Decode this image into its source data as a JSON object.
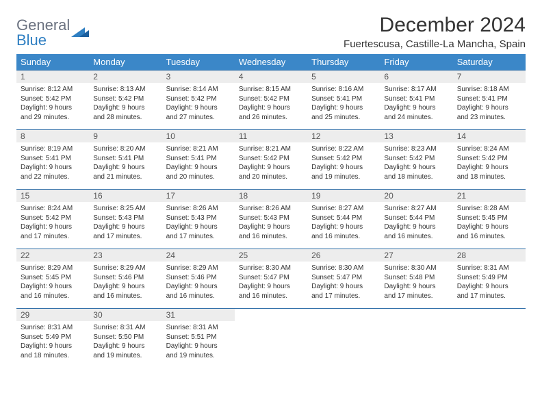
{
  "logo": {
    "general": "General",
    "blue": "Blue"
  },
  "title": "December 2024",
  "location": "Fuertescusa, Castille-La Mancha, Spain",
  "day_names": [
    "Sunday",
    "Monday",
    "Tuesday",
    "Wednesday",
    "Thursday",
    "Friday",
    "Saturday"
  ],
  "colors": {
    "header_bg": "#3b87c8",
    "week_border": "#2f6ea8",
    "daynum_bg": "#ededed"
  },
  "days": [
    {
      "n": "1",
      "sr": "8:12 AM",
      "ss": "5:42 PM",
      "dl": "9 hours and 29 minutes."
    },
    {
      "n": "2",
      "sr": "8:13 AM",
      "ss": "5:42 PM",
      "dl": "9 hours and 28 minutes."
    },
    {
      "n": "3",
      "sr": "8:14 AM",
      "ss": "5:42 PM",
      "dl": "9 hours and 27 minutes."
    },
    {
      "n": "4",
      "sr": "8:15 AM",
      "ss": "5:42 PM",
      "dl": "9 hours and 26 minutes."
    },
    {
      "n": "5",
      "sr": "8:16 AM",
      "ss": "5:41 PM",
      "dl": "9 hours and 25 minutes."
    },
    {
      "n": "6",
      "sr": "8:17 AM",
      "ss": "5:41 PM",
      "dl": "9 hours and 24 minutes."
    },
    {
      "n": "7",
      "sr": "8:18 AM",
      "ss": "5:41 PM",
      "dl": "9 hours and 23 minutes."
    },
    {
      "n": "8",
      "sr": "8:19 AM",
      "ss": "5:41 PM",
      "dl": "9 hours and 22 minutes."
    },
    {
      "n": "9",
      "sr": "8:20 AM",
      "ss": "5:41 PM",
      "dl": "9 hours and 21 minutes."
    },
    {
      "n": "10",
      "sr": "8:21 AM",
      "ss": "5:41 PM",
      "dl": "9 hours and 20 minutes."
    },
    {
      "n": "11",
      "sr": "8:21 AM",
      "ss": "5:42 PM",
      "dl": "9 hours and 20 minutes."
    },
    {
      "n": "12",
      "sr": "8:22 AM",
      "ss": "5:42 PM",
      "dl": "9 hours and 19 minutes."
    },
    {
      "n": "13",
      "sr": "8:23 AM",
      "ss": "5:42 PM",
      "dl": "9 hours and 18 minutes."
    },
    {
      "n": "14",
      "sr": "8:24 AM",
      "ss": "5:42 PM",
      "dl": "9 hours and 18 minutes."
    },
    {
      "n": "15",
      "sr": "8:24 AM",
      "ss": "5:42 PM",
      "dl": "9 hours and 17 minutes."
    },
    {
      "n": "16",
      "sr": "8:25 AM",
      "ss": "5:43 PM",
      "dl": "9 hours and 17 minutes."
    },
    {
      "n": "17",
      "sr": "8:26 AM",
      "ss": "5:43 PM",
      "dl": "9 hours and 17 minutes."
    },
    {
      "n": "18",
      "sr": "8:26 AM",
      "ss": "5:43 PM",
      "dl": "9 hours and 16 minutes."
    },
    {
      "n": "19",
      "sr": "8:27 AM",
      "ss": "5:44 PM",
      "dl": "9 hours and 16 minutes."
    },
    {
      "n": "20",
      "sr": "8:27 AM",
      "ss": "5:44 PM",
      "dl": "9 hours and 16 minutes."
    },
    {
      "n": "21",
      "sr": "8:28 AM",
      "ss": "5:45 PM",
      "dl": "9 hours and 16 minutes."
    },
    {
      "n": "22",
      "sr": "8:29 AM",
      "ss": "5:45 PM",
      "dl": "9 hours and 16 minutes."
    },
    {
      "n": "23",
      "sr": "8:29 AM",
      "ss": "5:46 PM",
      "dl": "9 hours and 16 minutes."
    },
    {
      "n": "24",
      "sr": "8:29 AM",
      "ss": "5:46 PM",
      "dl": "9 hours and 16 minutes."
    },
    {
      "n": "25",
      "sr": "8:30 AM",
      "ss": "5:47 PM",
      "dl": "9 hours and 16 minutes."
    },
    {
      "n": "26",
      "sr": "8:30 AM",
      "ss": "5:47 PM",
      "dl": "9 hours and 17 minutes."
    },
    {
      "n": "27",
      "sr": "8:30 AM",
      "ss": "5:48 PM",
      "dl": "9 hours and 17 minutes."
    },
    {
      "n": "28",
      "sr": "8:31 AM",
      "ss": "5:49 PM",
      "dl": "9 hours and 17 minutes."
    },
    {
      "n": "29",
      "sr": "8:31 AM",
      "ss": "5:49 PM",
      "dl": "9 hours and 18 minutes."
    },
    {
      "n": "30",
      "sr": "8:31 AM",
      "ss": "5:50 PM",
      "dl": "9 hours and 19 minutes."
    },
    {
      "n": "31",
      "sr": "8:31 AM",
      "ss": "5:51 PM",
      "dl": "9 hours and 19 minutes."
    }
  ],
  "labels": {
    "sunrise": "Sunrise:",
    "sunset": "Sunset:",
    "daylight": "Daylight:"
  }
}
